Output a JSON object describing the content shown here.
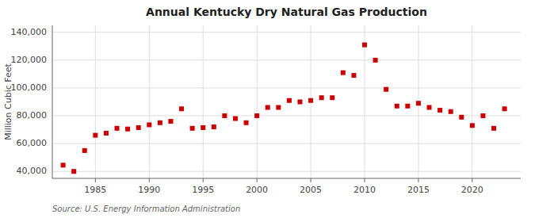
{
  "chart_data": {
    "type": "scatter",
    "title": "Annual Kentucky Dry Natural Gas Production",
    "y_label": "Million Cubic Feet",
    "annotations": [
      "Source: U.S. Energy Information Administration"
    ],
    "x": [
      1982,
      1983,
      1984,
      1985,
      1986,
      1987,
      1988,
      1989,
      1990,
      1991,
      1992,
      1993,
      1994,
      1995,
      1996,
      1997,
      1998,
      1999,
      2000,
      2001,
      2002,
      2003,
      2004,
      2005,
      2006,
      2007,
      2008,
      2009,
      2010,
      2011,
      2012,
      2013,
      2014,
      2015,
      2016,
      2017,
      2018,
      2019,
      2020,
      2021,
      2022,
      2023
    ],
    "values": [
      44500,
      40000,
      55000,
      66000,
      67500,
      71000,
      70500,
      71500,
      73500,
      75000,
      76000,
      85000,
      71000,
      71500,
      72000,
      80000,
      78000,
      75000,
      80000,
      86000,
      86000,
      91000,
      90000,
      91000,
      93000,
      93000,
      111000,
      109000,
      131000,
      120000,
      99000,
      87000,
      87000,
      89000,
      86000,
      84000,
      83000,
      79000,
      73000,
      80000,
      71000,
      85000
    ],
    "color": "#cc0000",
    "marker": "square",
    "xlim": [
      1981,
      2024.5
    ],
    "xticks": [
      1985,
      1990,
      1995,
      2000,
      2005,
      2010,
      2015,
      2020
    ],
    "ylim": [
      35000,
      145000
    ],
    "yticks": [
      {
        "value": 40000,
        "label": "40,000"
      },
      {
        "value": 60000,
        "label": "60,000"
      },
      {
        "value": 80000,
        "label": "80,000"
      },
      {
        "value": 100000,
        "label": "100,000"
      },
      {
        "value": 120000,
        "label": "120,000"
      },
      {
        "value": 140000,
        "label": "140,000"
      }
    ],
    "grid": true
  }
}
